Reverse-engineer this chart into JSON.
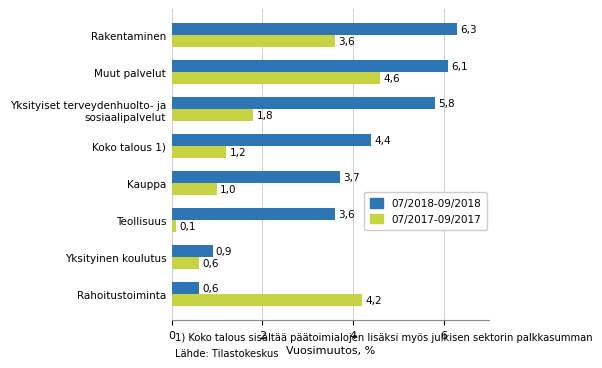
{
  "categories": [
    "Rakentaminen",
    "Muut palvelut",
    "Yksityiset terveydenhuolto- ja\nsosiaalipalvelut",
    "Koko talous 1)",
    "Kauppa",
    "Teollisuus",
    "Yksityinen koulutus",
    "Rahoitustoiminta"
  ],
  "values_2018": [
    6.3,
    6.1,
    5.8,
    4.4,
    3.7,
    3.6,
    0.9,
    0.6
  ],
  "values_2017": [
    3.6,
    4.6,
    1.8,
    1.2,
    1.0,
    0.1,
    0.6,
    4.2
  ],
  "color_2018": "#2E75B6",
  "color_2017": "#C7D342",
  "legend_2018": "07/2018-09/2018",
  "legend_2017": "07/2017-09/2017",
  "xlabel": "Vuosimuutos, %",
  "xlim": [
    0,
    7
  ],
  "xticks": [
    0,
    2,
    4,
    6
  ],
  "footnote1": "1) Koko talous sisältää päätoimialojen lisäksi myös julkisen sektorin palkkasumman",
  "footnote2": "Lähde: Tilastokeskus",
  "bar_height": 0.32,
  "fontsize_labels": 7.5,
  "fontsize_values": 7.5,
  "fontsize_axis": 8,
  "fontsize_legend": 7.5,
  "fontsize_footnote": 7.2
}
